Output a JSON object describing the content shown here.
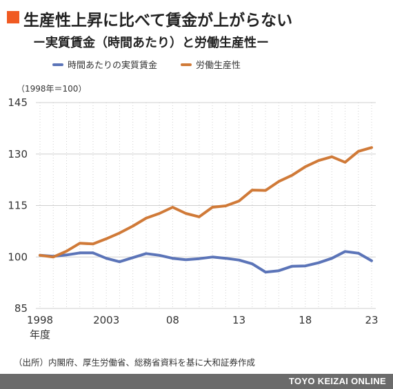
{
  "title": "生産性上昇に比べて賃金が上がらない",
  "subtitle": "ー実質賃金（時間あたり）と労働生産性ー",
  "unit_note": "（1998年＝100）",
  "year_label": "年度",
  "source": "（出所）内閣府、厚生労働省、総務省資料を基に大和証券作成",
  "footer": "TOYO KEIZAI ONLINE",
  "colors": {
    "title_marker": "#f05a22",
    "wage": "#5b74b8",
    "productivity": "#d07a38",
    "grid": "#cfcfcf",
    "footer_bg": "#6b6b6b"
  },
  "chart_data": {
    "type": "line",
    "x": [
      1998,
      1999,
      2000,
      2001,
      2002,
      2003,
      2004,
      2005,
      2006,
      2007,
      2008,
      2009,
      2010,
      2011,
      2012,
      2013,
      2014,
      2015,
      2016,
      2017,
      2018,
      2019,
      2020,
      2021,
      2022,
      2023
    ],
    "x_tick_values": [
      1998,
      2003,
      2008,
      2013,
      2018,
      2023
    ],
    "x_tick_labels": [
      "1998",
      "2003",
      "08",
      "13",
      "18",
      "23"
    ],
    "ylim": [
      85,
      145
    ],
    "y_ticks": [
      85,
      100,
      115,
      130,
      145
    ],
    "grid": true,
    "legend_position": "top-left",
    "series": [
      {
        "name": "時間あたりの実質賃金",
        "color": "#5b74b8",
        "values": [
          100.5,
          100.2,
          100.6,
          101.2,
          101.2,
          99.6,
          98.6,
          99.8,
          101.0,
          100.5,
          99.6,
          99.2,
          99.5,
          100.0,
          99.6,
          99.1,
          98.0,
          95.6,
          96.0,
          97.3,
          97.4,
          98.3,
          99.6,
          101.6,
          101.1,
          98.9
        ]
      },
      {
        "name": "労働生産性",
        "color": "#d07a38",
        "values": [
          100.5,
          100.0,
          101.7,
          104.0,
          103.8,
          105.3,
          107.0,
          109.0,
          111.3,
          112.7,
          114.5,
          112.7,
          111.7,
          114.5,
          114.9,
          116.3,
          119.5,
          119.4,
          122.0,
          123.8,
          126.3,
          128.1,
          129.2,
          127.6,
          130.8,
          131.9
        ]
      }
    ]
  }
}
